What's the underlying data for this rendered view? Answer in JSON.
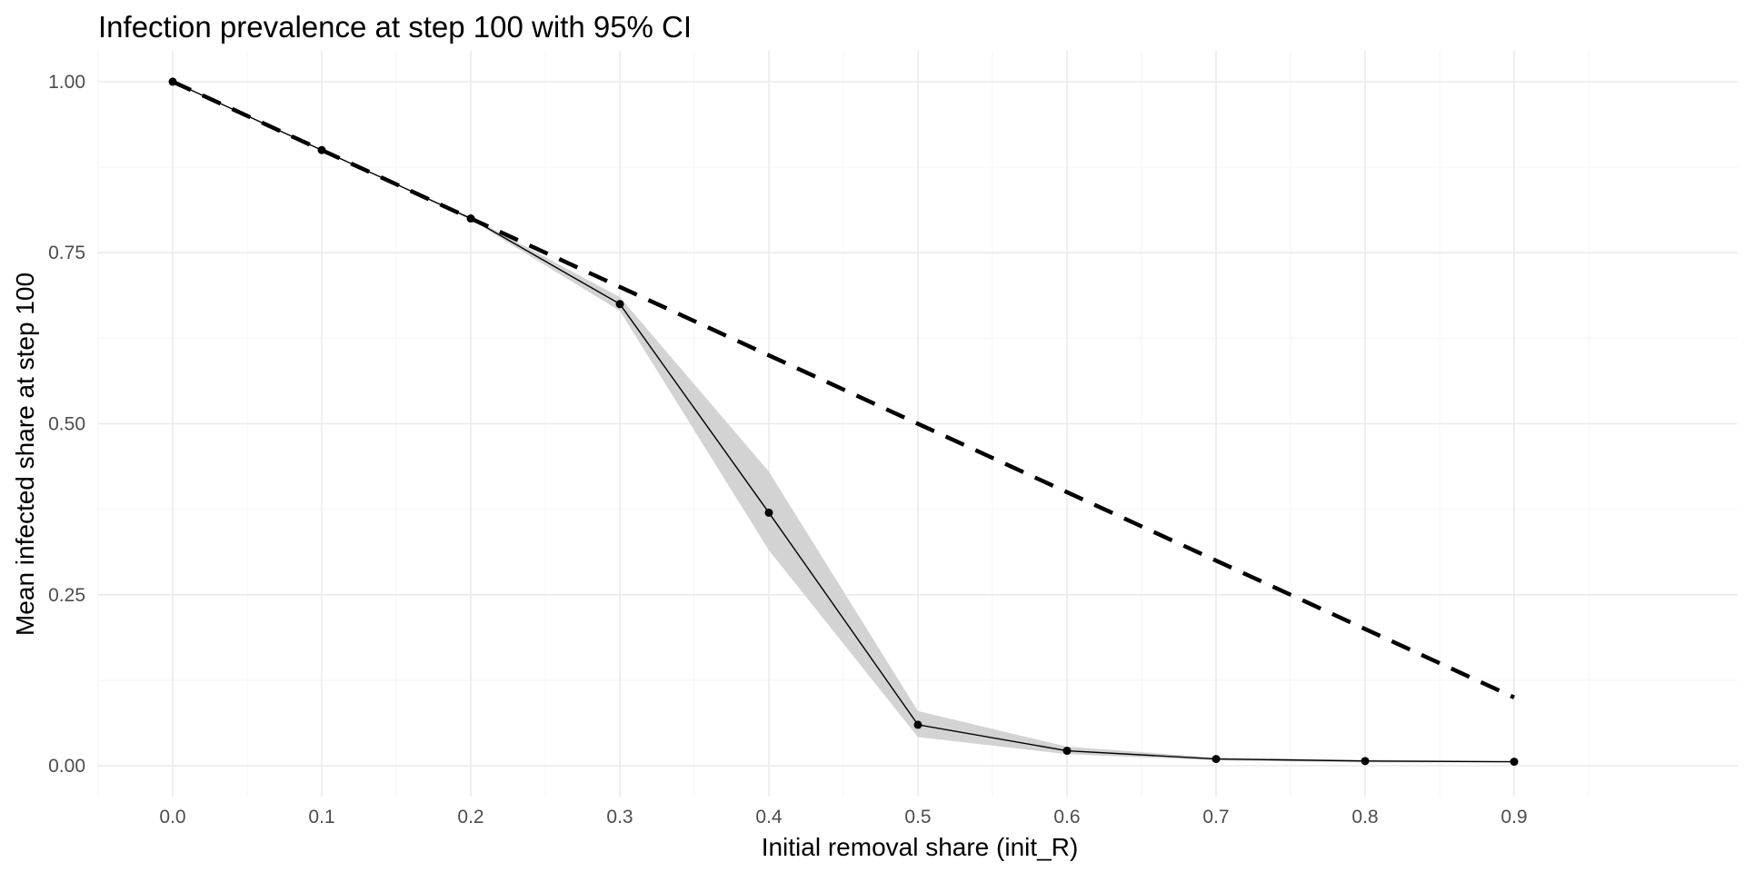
{
  "chart_data": {
    "type": "line",
    "title": "Infection prevalence at step 100 with 95% CI",
    "xlabel": "Initial removal share (init_R)",
    "ylabel": "Mean infected share at step 100",
    "x_ticks": [
      "0.0",
      "0.1",
      "0.2",
      "0.3",
      "0.4",
      "0.5",
      "0.6",
      "0.7",
      "0.8",
      "0.9"
    ],
    "y_ticks": [
      "0.00",
      "0.25",
      "0.50",
      "0.75",
      "1.00"
    ],
    "xlim": [
      -0.05,
      1.05
    ],
    "ylim": [
      -0.045,
      1.045
    ],
    "grid": true,
    "legend": "none",
    "series": [
      {
        "style": "solid-with-points",
        "x": [
          0.0,
          0.1,
          0.2,
          0.3,
          0.4,
          0.5,
          0.6,
          0.7,
          0.8,
          0.9
        ],
        "y": [
          1.0,
          0.9,
          0.8,
          0.675,
          0.37,
          0.06,
          0.022,
          0.01,
          0.007,
          0.006
        ],
        "ci_lower": [
          1.0,
          0.9,
          0.798,
          0.665,
          0.315,
          0.042,
          0.017,
          0.008,
          0.005,
          0.005
        ],
        "ci_upper": [
          1.0,
          0.9,
          0.802,
          0.685,
          0.43,
          0.08,
          0.028,
          0.012,
          0.009,
          0.007
        ]
      },
      {
        "style": "dashed",
        "x": [
          0.0,
          0.9
        ],
        "y": [
          1.0,
          0.1
        ]
      }
    ],
    "colors": {
      "line": "#000000",
      "ribbon": "#d3d3d3",
      "grid_major": "#ebebeb",
      "grid_minor": "#f4f4f4",
      "tick_text": "#4d4d4d"
    }
  }
}
